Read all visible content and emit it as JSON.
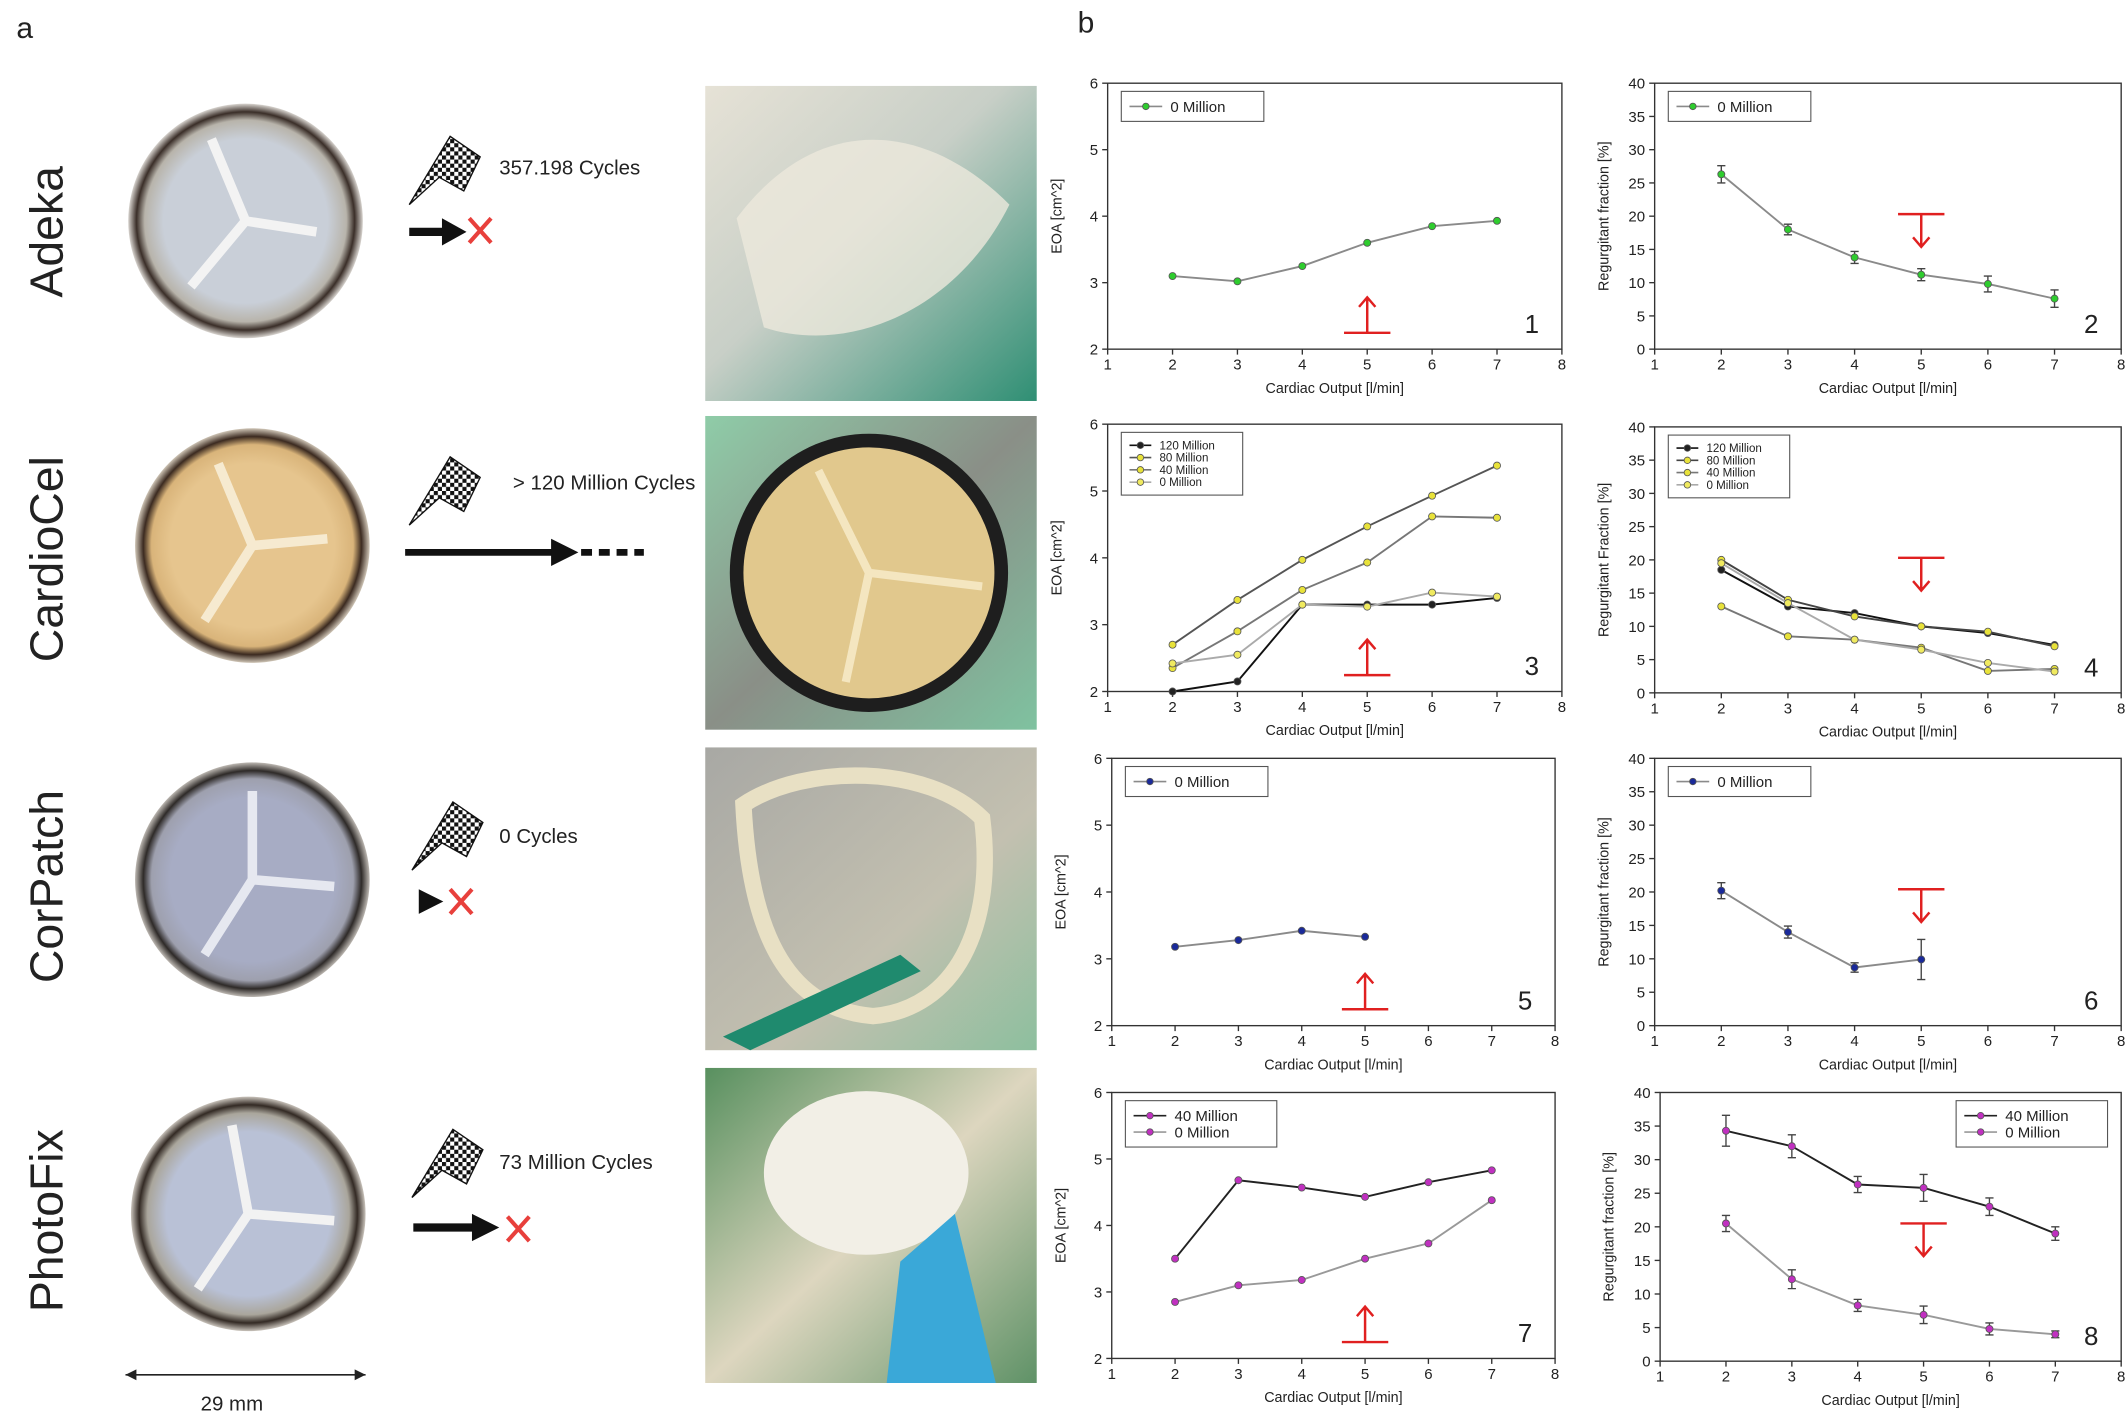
{
  "figure": {
    "panel_a": "a",
    "panel_b": "b",
    "scale_label": "29 mm",
    "rows": [
      {
        "name": "Adeka",
        "cycles": "357.198 Cycles"
      },
      {
        "name": "CardioCel",
        "cycles": "> 120 Million Cycles"
      },
      {
        "name": "CorPatch",
        "cycles": "0 Cycles"
      },
      {
        "name": "PhotoFix",
        "cycles": "73 Million Cycles"
      }
    ]
  },
  "chart_data": [
    {
      "type": "line",
      "annotation": "1",
      "xlabel": "Cardiac Output [l/min]",
      "ylabel": "EOA [cm^2]",
      "xlim": [
        1,
        8
      ],
      "ylim": [
        2,
        6
      ],
      "xticks": [
        1,
        2,
        3,
        4,
        5,
        6,
        7,
        8
      ],
      "yticks": [
        2,
        3,
        4,
        5,
        6
      ],
      "legend": "upper left",
      "arrow": {
        "x": 5,
        "direction": "up"
      },
      "x": [
        2,
        3,
        4,
        5,
        6,
        7
      ],
      "series": [
        {
          "name": "0 Million",
          "color": "#2ecc2e",
          "line_color": "#8a8a8a",
          "values": [
            3.1,
            3.02,
            3.25,
            3.6,
            3.85,
            3.93
          ]
        }
      ]
    },
    {
      "type": "line",
      "annotation": "2",
      "xlabel": "Cardiac Output [l/min]",
      "ylabel": "Regurgitant fraction [%]",
      "xlim": [
        1,
        8
      ],
      "ylim": [
        0,
        40
      ],
      "xticks": [
        1,
        2,
        3,
        4,
        5,
        6,
        7,
        8
      ],
      "yticks": [
        0,
        5,
        10,
        15,
        20,
        25,
        30,
        35,
        40
      ],
      "legend": "upper left",
      "arrow": {
        "x": 5,
        "direction": "down"
      },
      "x": [
        2,
        3,
        4,
        5,
        6,
        7
      ],
      "series": [
        {
          "name": "0 Million",
          "color": "#2ecc2e",
          "line_color": "#8a8a8a",
          "values": [
            26.3,
            18,
            13.8,
            11.2,
            9.8,
            7.6
          ],
          "errors": [
            1.3,
            0.8,
            0.9,
            0.9,
            1.2,
            1.3
          ]
        }
      ]
    },
    {
      "type": "line",
      "annotation": "3",
      "xlabel": "Cardiac Output [l/min]",
      "ylabel": "EOA [cm^2]",
      "xlim": [
        1,
        8
      ],
      "ylim": [
        2,
        6
      ],
      "xticks": [
        1,
        2,
        3,
        4,
        5,
        6,
        7,
        8
      ],
      "yticks": [
        2,
        3,
        4,
        5,
        6
      ],
      "legend": "upper left",
      "legend_small": true,
      "arrow": {
        "x": 5,
        "direction": "up"
      },
      "x": [
        2,
        3,
        4,
        5,
        6,
        7
      ],
      "series": [
        {
          "name": "120 Million",
          "color": "#222222",
          "line_color": "#111111",
          "values": [
            2,
            2.15,
            3.3,
            3.3,
            3.3,
            3.4
          ]
        },
        {
          "name": "80 Million",
          "color": "#e8e23a",
          "line_color": "#555555",
          "values": [
            2.7,
            3.37,
            3.97,
            4.47,
            4.93,
            5.38
          ]
        },
        {
          "name": "40 Million",
          "color": "#e8e23a",
          "line_color": "#777777",
          "values": [
            2.35,
            2.9,
            3.52,
            3.93,
            4.62,
            4.6
          ]
        },
        {
          "name": "0 Million",
          "color": "#f0ea60",
          "line_color": "#aaaaaa",
          "values": [
            2.42,
            2.55,
            3.3,
            3.27,
            3.48,
            3.42
          ]
        }
      ]
    },
    {
      "type": "line",
      "annotation": "4",
      "xlabel": "Cardiac Output [l/min]",
      "ylabel": "Regurgitant Fraction [%]",
      "xlim": [
        1,
        8
      ],
      "ylim": [
        0,
        40
      ],
      "xticks": [
        1,
        2,
        3,
        4,
        5,
        6,
        7,
        8
      ],
      "yticks": [
        0,
        5,
        10,
        15,
        20,
        25,
        30,
        35,
        40
      ],
      "legend": "upper left",
      "legend_small": true,
      "arrow": {
        "x": 5,
        "direction": "down"
      },
      "x": [
        2,
        3,
        4,
        5,
        6,
        7
      ],
      "series": [
        {
          "name": "120 Million",
          "color": "#222222",
          "line_color": "#111111",
          "values": [
            18.5,
            13,
            12,
            10,
            9,
            7.2
          ]
        },
        {
          "name": "80 Million",
          "color": "#e8e23a",
          "line_color": "#444444",
          "values": [
            20,
            14,
            11.5,
            10,
            9.2,
            7
          ]
        },
        {
          "name": "40 Million",
          "color": "#e8e23a",
          "line_color": "#777777",
          "values": [
            13,
            8.5,
            8,
            6.8,
            3.3,
            3.6
          ]
        },
        {
          "name": "0 Million",
          "color": "#f0ea60",
          "line_color": "#aaaaaa",
          "values": [
            19.5,
            13.5,
            8,
            6.5,
            4.5,
            3.2
          ]
        }
      ]
    },
    {
      "type": "line",
      "annotation": "5",
      "xlabel": "Cardiac Output [l/min]",
      "ylabel": "EOA [cm^2]",
      "xlim": [
        1,
        8
      ],
      "ylim": [
        2,
        6
      ],
      "xticks": [
        1,
        2,
        3,
        4,
        5,
        6,
        7,
        8
      ],
      "yticks": [
        2,
        3,
        4,
        5,
        6
      ],
      "legend": "upper left",
      "arrow": {
        "x": 5,
        "direction": "up"
      },
      "x": [
        2,
        3,
        4,
        5
      ],
      "series": [
        {
          "name": "0 Million",
          "color": "#1a2a9a",
          "line_color": "#8a8a8a",
          "values": [
            3.18,
            3.28,
            3.42,
            3.33
          ]
        }
      ]
    },
    {
      "type": "line",
      "annotation": "6",
      "xlabel": "Cardiac Output [l/min]",
      "ylabel": "Regurgitant fraction [%]",
      "xlim": [
        1,
        8
      ],
      "ylim": [
        0,
        40
      ],
      "xticks": [
        1,
        2,
        3,
        4,
        5,
        6,
        7,
        8
      ],
      "yticks": [
        0,
        5,
        10,
        15,
        20,
        25,
        30,
        35,
        40
      ],
      "legend": "upper left",
      "arrow": {
        "x": 5,
        "direction": "down"
      },
      "x": [
        2,
        3,
        4,
        5
      ],
      "series": [
        {
          "name": "0 Million",
          "color": "#1a2a9a",
          "line_color": "#8a8a8a",
          "values": [
            20.2,
            14,
            8.7,
            9.9
          ],
          "errors": [
            1.2,
            0.9,
            0.7,
            3
          ]
        }
      ]
    },
    {
      "type": "line",
      "annotation": "7",
      "xlabel": "Cardiac Output [l/min]",
      "ylabel": "EOA [cm^2]",
      "xlim": [
        1,
        8
      ],
      "ylim": [
        2,
        6
      ],
      "xticks": [
        1,
        2,
        3,
        4,
        5,
        6,
        7,
        8
      ],
      "yticks": [
        2,
        3,
        4,
        5,
        6
      ],
      "legend": "upper left",
      "arrow": {
        "x": 5,
        "direction": "up"
      },
      "x": [
        2,
        3,
        4,
        5,
        6,
        7
      ],
      "series": [
        {
          "name": "40 Million",
          "color": "#c030c0",
          "line_color": "#222222",
          "values": [
            3.5,
            4.68,
            4.57,
            4.43,
            4.65,
            4.83
          ]
        },
        {
          "name": "0 Million",
          "color": "#c030c0",
          "line_color": "#999999",
          "values": [
            2.85,
            3.1,
            3.18,
            3.5,
            3.73,
            4.38
          ]
        }
      ]
    },
    {
      "type": "line",
      "annotation": "8",
      "xlabel": "Cardiac Output [l/min]",
      "ylabel": "Regurgitant fraction [%]",
      "xlim": [
        1,
        8
      ],
      "ylim": [
        0,
        40
      ],
      "xticks": [
        1,
        2,
        3,
        4,
        5,
        6,
        7,
        8
      ],
      "yticks": [
        0,
        5,
        10,
        15,
        20,
        25,
        30,
        35,
        40
      ],
      "legend": "upper right",
      "arrow": {
        "x": 5,
        "direction": "down"
      },
      "x": [
        2,
        3,
        4,
        5,
        6,
        7
      ],
      "series": [
        {
          "name": "40 Million",
          "color": "#c030c0",
          "line_color": "#222222",
          "values": [
            34.3,
            32,
            26.3,
            25.8,
            23,
            19
          ],
          "errors": [
            2.3,
            1.7,
            1.2,
            2,
            1.3,
            1
          ]
        },
        {
          "name": "0 Million",
          "color": "#c030c0",
          "line_color": "#999999",
          "values": [
            20.5,
            12.2,
            8.3,
            6.9,
            4.8,
            4
          ],
          "errors": [
            1.2,
            1.4,
            0.9,
            1.3,
            0.9,
            0.5
          ]
        }
      ]
    }
  ]
}
